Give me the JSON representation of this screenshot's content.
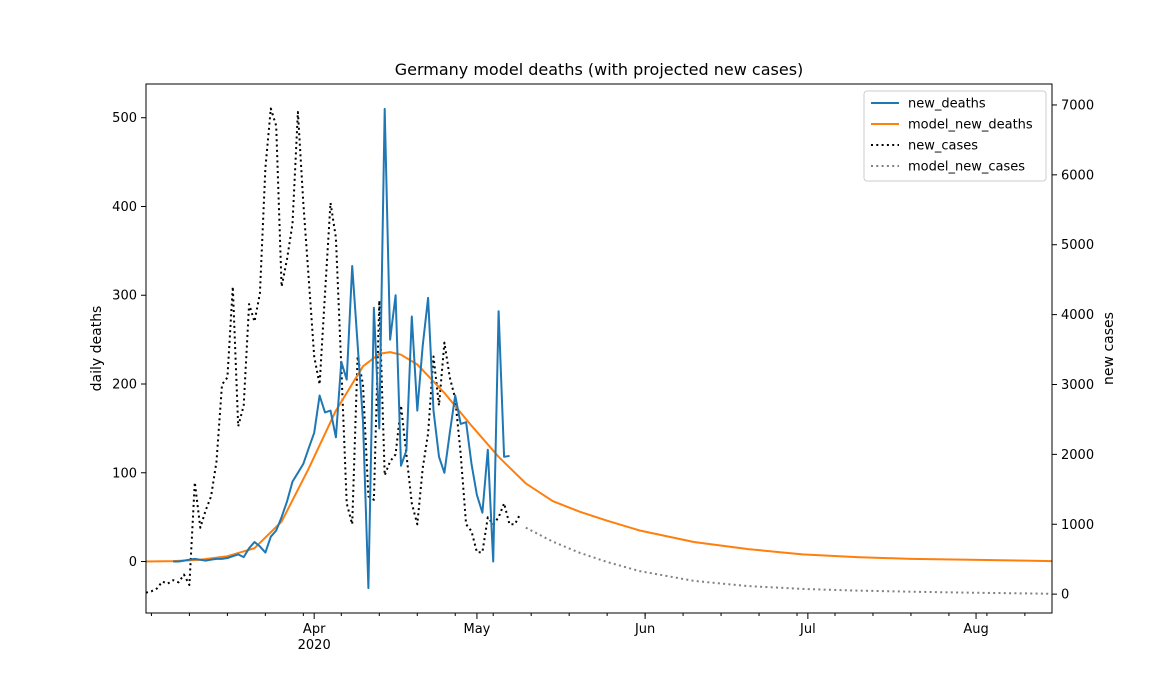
{
  "chart_data": {
    "type": "line",
    "title": "Germany model deaths (with projected new cases)",
    "ylabel": "daily deaths",
    "y2label": "new cases",
    "ylim": [
      -58,
      538
    ],
    "y2lim": [
      -270,
      7300
    ],
    "yticks": [
      0,
      100,
      200,
      300,
      400,
      500
    ],
    "y2ticks": [
      0,
      1000,
      2000,
      3000,
      4000,
      5000,
      6000,
      7000
    ],
    "x_range": [
      "2020-03-01",
      "2020-08-15"
    ],
    "xticks": [
      {
        "date": "2020-04-01",
        "label": "Apr",
        "sublabel": "2020"
      },
      {
        "date": "2020-05-01",
        "label": "May",
        "sublabel": ""
      },
      {
        "date": "2020-06-01",
        "label": "Jun",
        "sublabel": ""
      },
      {
        "date": "2020-07-01",
        "label": "Jul",
        "sublabel": ""
      },
      {
        "date": "2020-08-01",
        "label": "Aug",
        "sublabel": ""
      }
    ],
    "legend_position": "top-right",
    "grid": false,
    "series": [
      {
        "name": "new_deaths",
        "axis": "left",
        "color": "#1f77b4",
        "style": "solid",
        "x": [
          "2020-03-06",
          "2020-03-07",
          "2020-03-08",
          "2020-03-09",
          "2020-03-10",
          "2020-03-11",
          "2020-03-12",
          "2020-03-13",
          "2020-03-14",
          "2020-03-15",
          "2020-03-16",
          "2020-03-17",
          "2020-03-18",
          "2020-03-19",
          "2020-03-20",
          "2020-03-21",
          "2020-03-22",
          "2020-03-23",
          "2020-03-24",
          "2020-03-25",
          "2020-03-26",
          "2020-03-27",
          "2020-03-28",
          "2020-03-29",
          "2020-03-30",
          "2020-03-31",
          "2020-04-01",
          "2020-04-02",
          "2020-04-03",
          "2020-04-04",
          "2020-04-05",
          "2020-04-06",
          "2020-04-07",
          "2020-04-08",
          "2020-04-09",
          "2020-04-10",
          "2020-04-11",
          "2020-04-12",
          "2020-04-13",
          "2020-04-14",
          "2020-04-15",
          "2020-04-16",
          "2020-04-17",
          "2020-04-18",
          "2020-04-19",
          "2020-04-20",
          "2020-04-21",
          "2020-04-22",
          "2020-04-23",
          "2020-04-24",
          "2020-04-25",
          "2020-04-26",
          "2020-04-27",
          "2020-04-28",
          "2020-04-29",
          "2020-04-30",
          "2020-05-01",
          "2020-05-02",
          "2020-05-03",
          "2020-05-04",
          "2020-05-05",
          "2020-05-06",
          "2020-05-07",
          "2020-05-08",
          "2020-05-09"
        ],
        "values": [
          0,
          0,
          1,
          2,
          3,
          2,
          1,
          2,
          3,
          3,
          4,
          6,
          8,
          5,
          15,
          22,
          17,
          10,
          28,
          35,
          50,
          68,
          90,
          100,
          110,
          128,
          145,
          187,
          168,
          170,
          140,
          225,
          205,
          333,
          245,
          158,
          -30,
          286,
          150,
          510,
          250,
          300,
          108,
          125,
          276,
          170,
          243,
          297,
          170,
          118,
          100,
          145,
          187,
          155,
          157,
          110,
          75,
          55,
          126,
          0,
          282,
          118,
          119,
          null,
          null
        ]
      },
      {
        "name": "model_new_deaths",
        "axis": "left",
        "color": "#ff7f0e",
        "style": "solid",
        "x": [
          "2020-03-01",
          "2020-03-06",
          "2020-03-11",
          "2020-03-16",
          "2020-03-21",
          "2020-03-26",
          "2020-03-31",
          "2020-04-05",
          "2020-04-10",
          "2020-04-13",
          "2020-04-15",
          "2020-04-17",
          "2020-04-20",
          "2020-04-25",
          "2020-04-30",
          "2020-05-05",
          "2020-05-10",
          "2020-05-15",
          "2020-05-20",
          "2020-05-25",
          "2020-05-31",
          "2020-06-10",
          "2020-06-20",
          "2020-06-30",
          "2020-07-10",
          "2020-07-20",
          "2020-07-31",
          "2020-08-10",
          "2020-08-15"
        ],
        "values": [
          0,
          0.5,
          2,
          6,
          15,
          45,
          105,
          170,
          220,
          234,
          236,
          233,
          222,
          190,
          153,
          118,
          88,
          68,
          56,
          46,
          35,
          22,
          14,
          8,
          5,
          3,
          2,
          1,
          0.5
        ]
      },
      {
        "name": "new_cases",
        "axis": "right",
        "color": "#000000",
        "style": "dotted",
        "x": [
          "2020-03-01",
          "2020-03-02",
          "2020-03-03",
          "2020-03-04",
          "2020-03-05",
          "2020-03-06",
          "2020-03-07",
          "2020-03-08",
          "2020-03-09",
          "2020-03-10",
          "2020-03-11",
          "2020-03-12",
          "2020-03-13",
          "2020-03-14",
          "2020-03-15",
          "2020-03-16",
          "2020-03-17",
          "2020-03-18",
          "2020-03-19",
          "2020-03-20",
          "2020-03-21",
          "2020-03-22",
          "2020-03-23",
          "2020-03-24",
          "2020-03-25",
          "2020-03-26",
          "2020-03-27",
          "2020-03-28",
          "2020-03-29",
          "2020-03-30",
          "2020-03-31",
          "2020-04-01",
          "2020-04-02",
          "2020-04-03",
          "2020-04-04",
          "2020-04-05",
          "2020-04-06",
          "2020-04-07",
          "2020-04-08",
          "2020-04-09",
          "2020-04-10",
          "2020-04-11",
          "2020-04-12",
          "2020-04-13",
          "2020-04-14",
          "2020-04-15",
          "2020-04-16",
          "2020-04-17",
          "2020-04-18",
          "2020-04-19",
          "2020-04-20",
          "2020-04-21",
          "2020-04-22",
          "2020-04-23",
          "2020-04-24",
          "2020-04-25",
          "2020-04-26",
          "2020-04-27",
          "2020-04-28",
          "2020-04-29",
          "2020-04-30",
          "2020-05-01",
          "2020-05-02",
          "2020-05-03",
          "2020-05-04",
          "2020-05-05",
          "2020-05-06",
          "2020-05-07",
          "2020-05-08",
          "2020-05-09"
        ],
        "values": [
          20,
          40,
          80,
          180,
          150,
          200,
          170,
          280,
          130,
          1600,
          950,
          1200,
          1400,
          1900,
          3000,
          3100,
          4400,
          2400,
          2700,
          4150,
          3900,
          4300,
          6100,
          6950,
          6700,
          4400,
          4800,
          5300,
          6900,
          5600,
          4500,
          3400,
          3000,
          4300,
          5600,
          5100,
          3250,
          1300,
          1000,
          3400,
          3000,
          1400,
          1350,
          4200,
          1700,
          1900,
          2000,
          2700,
          2000,
          1300,
          1000,
          1800,
          2300,
          3400,
          2700,
          3600,
          3100,
          2800,
          2000,
          1000,
          900,
          600,
          600,
          1100,
          1000,
          1100,
          1300,
          1000,
          1000,
          1150
        ]
      },
      {
        "name": "model_new_cases",
        "axis": "right",
        "color": "#808080",
        "style": "dotted",
        "x": [
          "2020-05-10",
          "2020-05-15",
          "2020-05-20",
          "2020-05-25",
          "2020-05-31",
          "2020-06-10",
          "2020-06-20",
          "2020-06-30",
          "2020-07-10",
          "2020-07-20",
          "2020-07-31",
          "2020-08-10",
          "2020-08-15"
        ],
        "values": [
          950,
          750,
          590,
          460,
          330,
          190,
          115,
          75,
          50,
          35,
          20,
          10,
          5
        ]
      }
    ]
  }
}
